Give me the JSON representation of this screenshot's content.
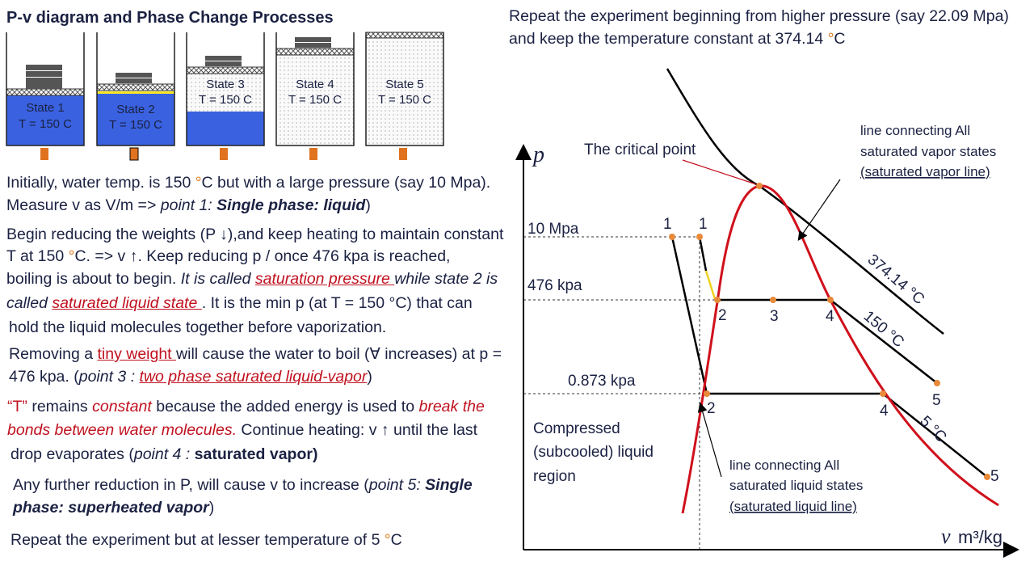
{
  "title": "P-v diagram and Phase Change Processes",
  "states": [
    {
      "label": "State 1",
      "temp": "T = 150 C"
    },
    {
      "label": "State 2",
      "temp": "T = 150 C"
    },
    {
      "label": "State 3",
      "temp": "T = 150 C"
    },
    {
      "label": "State 4",
      "temp": "T = 150 C"
    },
    {
      "label": "State 5",
      "temp": "T = 150 C"
    }
  ],
  "text": {
    "lines": [
      [
        "Initially, water temp. is 150 ",
        "°",
        "C but with a large pressure (say 10 Mpa)."
      ],
      [
        "Measure  v  as V/m => ",
        "point 1: ",
        "Single phase: liquid",
        ")"
      ],
      [
        "Begin reducing the weights (P ↓),and keep heating to maintain constant"
      ],
      [
        "T at 150 ",
        "°",
        "C. => v ↑. Keep reducing p / once 476 kpa is reached,"
      ],
      [
        "boiling is about to begin. ",
        "It is called ",
        "saturation pressure ",
        "while state 2 is"
      ],
      [
        "called ",
        "saturated liquid state ",
        ".  It is the min p (at T = 150 °C) that can"
      ],
      [
        "hold the liquid molecules together before vaporization."
      ],
      [
        "Removing a ",
        "tiny weight ",
        "will cause the water to boil (∀ increases) at p ="
      ],
      [
        "476 kpa. (",
        "point 3 : ",
        "two phase saturated liquid-vapor",
        ")"
      ],
      [
        "“T”",
        " remains ",
        "constant ",
        " because the added energy is used to ",
        "break the"
      ],
      [
        "bonds between water molecules.",
        " Continue heating: v ↑ until the last"
      ],
      [
        "drop evaporates (",
        "point 4 : ",
        "saturated vapor)"
      ],
      [
        "Any further reduction in P, will cause v to increase (",
        "point 5: ",
        "Single"
      ],
      [
        "phase: superheated vapor",
        ")"
      ],
      [
        "Repeat the experiment but at lesser temperature of 5 ",
        "°",
        "C"
      ]
    ]
  },
  "header": {
    "line1": "Repeat the experiment beginning from higher pressure (say 22.09 Mpa)",
    "line2": [
      "and keep the temperature constant at  374.14 ",
      "°",
      "C"
    ]
  },
  "diagram": {
    "y_axis": "p",
    "x_axis_v": "v",
    "x_axis_unit": "m³/kg",
    "pressures": [
      "10 Mpa",
      "476 kpa",
      "0.873 kpa"
    ],
    "points": [
      "1",
      "1",
      "2",
      "3",
      "4",
      "5",
      "2",
      "4",
      "5"
    ],
    "isotherms": [
      "374.14 °C",
      "150 °C",
      "5 °C"
    ],
    "critical_point": "The critical point",
    "vapor_note": [
      "line connecting All",
      "saturated vapor states",
      "(saturated vapor line)"
    ],
    "liquid_note": [
      "line connecting All",
      "saturated liquid states",
      "(saturated liquid line)"
    ],
    "region": [
      "Compressed",
      "(subcooled)  liquid",
      "region"
    ]
  }
}
